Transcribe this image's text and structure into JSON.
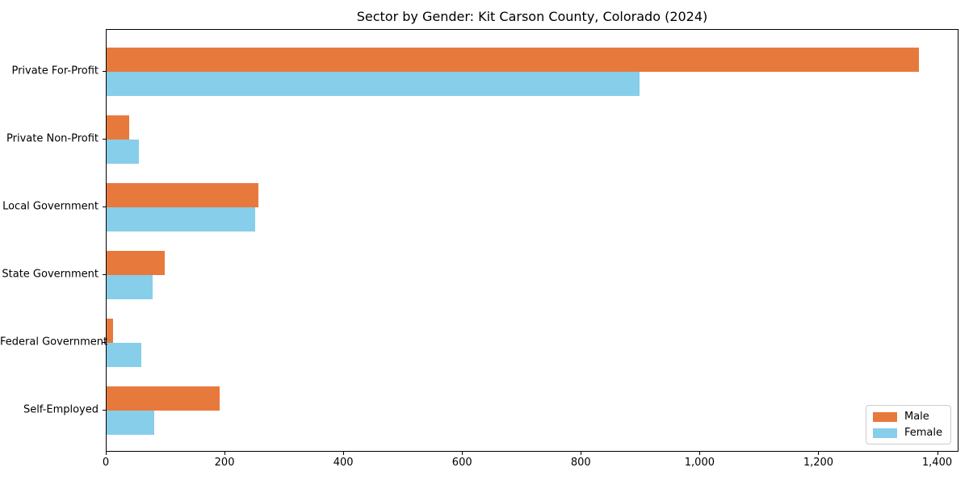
{
  "chart_data": {
    "type": "bar",
    "orientation": "horizontal",
    "title": "Sector by Gender: Kit Carson County, Colorado (2024)",
    "categories": [
      "Private For-Profit",
      "Private Non-Profit",
      "Local Government",
      "State Government",
      "Federal Government",
      "Self-Employed"
    ],
    "series": [
      {
        "name": "Male",
        "color": "#E8793C",
        "values": [
          1368,
          38,
          255,
          98,
          11,
          190
        ]
      },
      {
        "name": "Female",
        "color": "#87CEEB",
        "values": [
          898,
          54,
          250,
          77,
          58,
          80
        ]
      }
    ],
    "xlabel": "",
    "ylabel": "",
    "xlim": [
      0,
      1436
    ],
    "xticks": [
      0,
      200,
      400,
      600,
      800,
      1000,
      1200,
      1400
    ],
    "xtick_labels": [
      "0",
      "200",
      "400",
      "600",
      "800",
      "1,000",
      "1,200",
      "1,400"
    ],
    "grid": false,
    "legend": {
      "position": "lower-right",
      "entries": [
        "Male",
        "Female"
      ]
    },
    "colors": {
      "axis": "#000000",
      "text": "#000000",
      "legend_border": "#cccccc",
      "background": "#ffffff"
    }
  }
}
